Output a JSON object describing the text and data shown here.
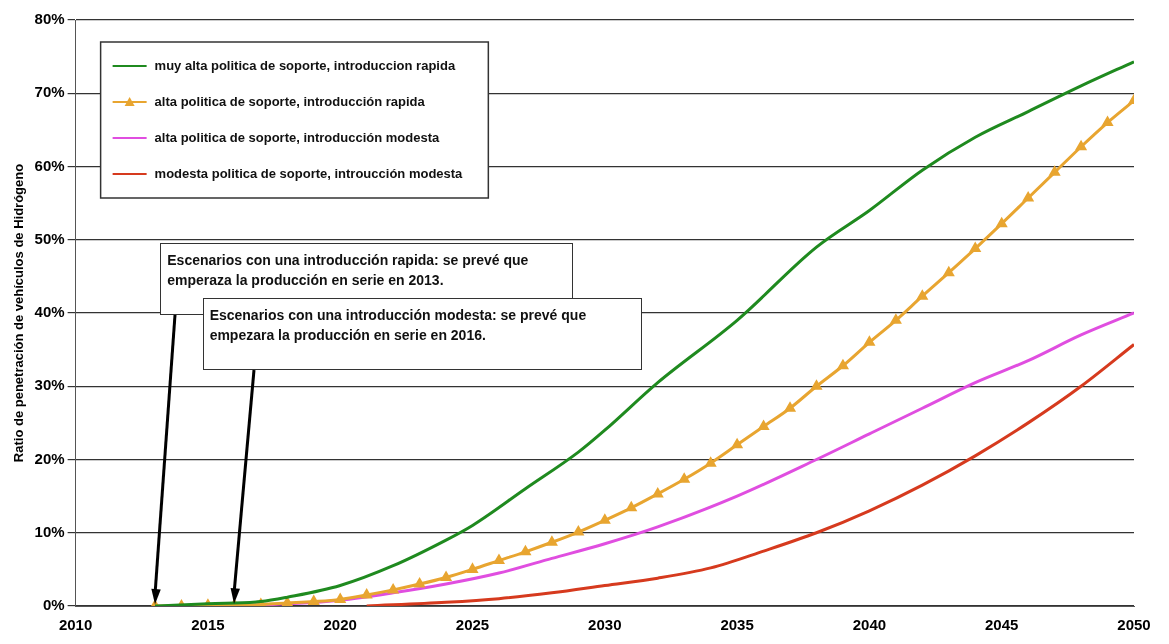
{
  "chart_data": {
    "type": "line",
    "ylabel": "Ratio de penetración de vehículos de Hidrógeno",
    "xlim": [
      2010,
      2050
    ],
    "xticks": [
      2010,
      2015,
      2020,
      2025,
      2030,
      2035,
      2040,
      2045,
      2050
    ],
    "ylim": [
      0,
      80
    ],
    "yticks": [
      {
        "value": 0,
        "label": "0%"
      },
      {
        "value": 10,
        "label": "10%"
      },
      {
        "value": 20,
        "label": "20%"
      },
      {
        "value": 30,
        "label": "30%"
      },
      {
        "value": 40,
        "label": "40%"
      },
      {
        "value": 50,
        "label": "50%"
      },
      {
        "value": 60,
        "label": "60%"
      },
      {
        "value": 70,
        "label": "70%"
      },
      {
        "value": 80,
        "label": "80%"
      }
    ],
    "grid": "y",
    "legend": "top left",
    "marker": "none",
    "line_style": "solid",
    "series": [
      {
        "name": "muy alta politica de soporte, introduccion rapida",
        "color": "#1f8a1f",
        "x": [
          2013,
          2015,
          2017,
          2018,
          2020,
          2022,
          2024,
          2025,
          2027,
          2029,
          2030,
          2032,
          2035,
          2038,
          2040,
          2042,
          2044,
          2046,
          2048,
          2050
        ],
        "values": [
          0,
          0.3,
          0.6,
          1.2,
          2.8,
          5.5,
          9,
          11,
          16,
          21,
          24,
          30.5,
          39,
          49,
          54,
          59.5,
          64,
          67.5,
          71,
          74.3
        ]
      },
      {
        "name": "alta politica de soporte, introducción rapida",
        "color": "#e8a530",
        "marker": "triangle",
        "x": [
          2013,
          2014,
          2015,
          2016,
          2017,
          2018,
          2019,
          2020,
          2021,
          2022,
          2023,
          2024,
          2025,
          2026,
          2027,
          2028,
          2029,
          2030,
          2031,
          2032,
          2033,
          2034,
          2035,
          2036,
          2037,
          2038,
          2039,
          2040,
          2041,
          2042,
          2043,
          2044,
          2045,
          2046,
          2047,
          2048,
          2049,
          2050
        ],
        "values": [
          0,
          0,
          0.1,
          0.1,
          0.2,
          0.4,
          0.6,
          0.9,
          1.5,
          2.2,
          3,
          3.9,
          5,
          6.2,
          7.4,
          8.7,
          10.1,
          11.7,
          13.4,
          15.3,
          17.3,
          19.5,
          22,
          24.5,
          27,
          30,
          32.8,
          36,
          39,
          42.3,
          45.5,
          48.8,
          52.2,
          55.7,
          59.2,
          62.7,
          66,
          69
        ]
      },
      {
        "name": "alta politica de soporte, introducción modesta",
        "color": "#e04ee0",
        "x": [
          2016,
          2018,
          2020,
          2022,
          2024,
          2026,
          2028,
          2030,
          2032,
          2035,
          2038,
          2040,
          2042,
          2044,
          2046,
          2048,
          2050
        ],
        "values": [
          0,
          0.3,
          0.8,
          1.8,
          3,
          4.5,
          6.5,
          8.5,
          10.8,
          15,
          20,
          23.5,
          27,
          30.5,
          33.5,
          37,
          40
        ]
      },
      {
        "name": "modesta politica de soporte, introucción modesta",
        "color": "#d63a1e",
        "x": [
          2021,
          2024,
          2026,
          2028,
          2030,
          2032,
          2034,
          2036,
          2038,
          2040,
          2042,
          2044,
          2046,
          2048,
          2050
        ],
        "values": [
          0,
          0.5,
          1,
          1.8,
          2.8,
          3.8,
          5.2,
          7.5,
          10,
          13,
          16.5,
          20.5,
          25,
          30,
          35.7
        ]
      }
    ],
    "annotations": [
      "Escenarios con una introducción rapida: se prevé que emperaza la producción en serie en 2013.",
      "Escenarios con una introducción modesta: se prevé que empezara la producción en serie en 2016."
    ]
  }
}
